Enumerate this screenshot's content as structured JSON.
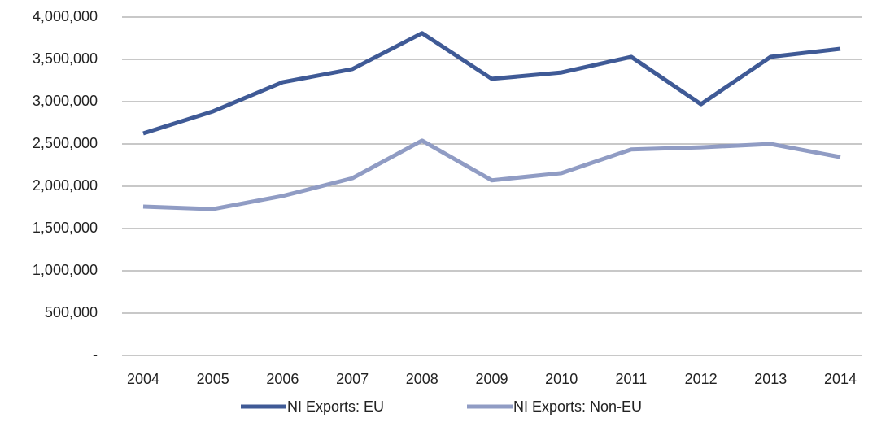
{
  "chart_data": {
    "type": "line",
    "categories": [
      "2004",
      "2005",
      "2006",
      "2007",
      "2008",
      "2009",
      "2010",
      "2011",
      "2012",
      "2013",
      "2014"
    ],
    "series": [
      {
        "name": "NI Exports: EU",
        "color": "#3f5a96",
        "values": [
          2625000,
          2885000,
          3230000,
          3385000,
          3810000,
          3270000,
          3345000,
          3530000,
          2970000,
          3530000,
          3625000
        ]
      },
      {
        "name": "NI Exports: Non-EU",
        "color": "#909cc4",
        "values": [
          1760000,
          1730000,
          1885000,
          2095000,
          2540000,
          2070000,
          2155000,
          2435000,
          2460000,
          2500000,
          2345000
        ]
      }
    ],
    "ylim": [
      0,
      4000000
    ],
    "yticks": [
      {
        "value": 0,
        "label": "-"
      },
      {
        "value": 500000,
        "label": "500,000"
      },
      {
        "value": 1000000,
        "label": "1,000,000"
      },
      {
        "value": 1500000,
        "label": "1,500,000"
      },
      {
        "value": 2000000,
        "label": "2,000,000"
      },
      {
        "value": 2500000,
        "label": "2,500,000"
      },
      {
        "value": 3000000,
        "label": "3,000,000"
      },
      {
        "value": 3500000,
        "label": "3,500,000"
      },
      {
        "value": 4000000,
        "label": "4,000,000"
      }
    ],
    "grid": true,
    "legend": "bottom"
  }
}
